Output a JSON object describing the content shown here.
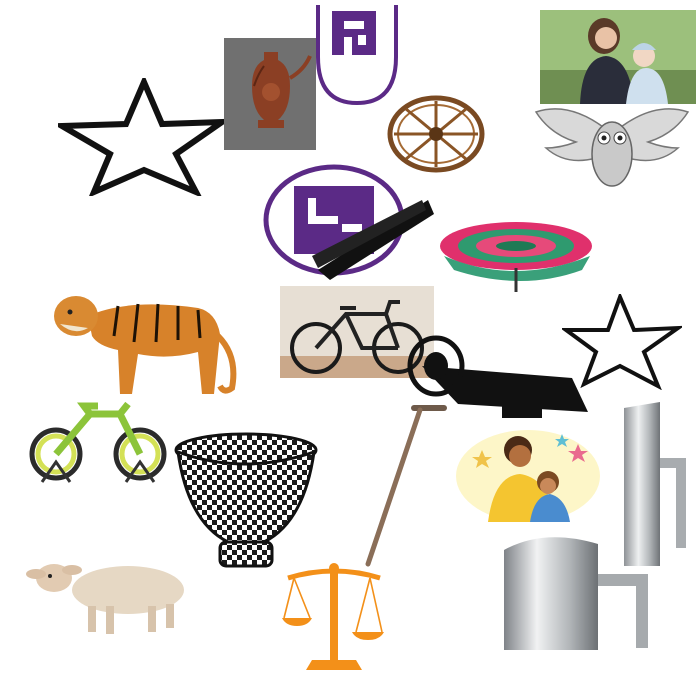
{
  "canvas": {
    "background": "#ffffff"
  },
  "items": [
    {
      "name": "star-outline-icon"
    },
    {
      "name": "ornate-vase-image"
    },
    {
      "name": "swastika-emblem-icon"
    },
    {
      "name": "wagon-wheel-image"
    },
    {
      "name": "mother-and-baby-photo"
    },
    {
      "name": "winged-owl-emblem-icon"
    },
    {
      "name": "swastika-emblem-icon"
    },
    {
      "name": "decorative-umbrella-image"
    },
    {
      "name": "tiger-image"
    },
    {
      "name": "bicycle-photo"
    },
    {
      "name": "megaphone-icon"
    },
    {
      "name": "star-outline-icon"
    },
    {
      "name": "bicycle-rack-image"
    },
    {
      "name": "woven-basket-icon"
    },
    {
      "name": "walking-cane-image"
    },
    {
      "name": "mother-and-child-illustration"
    },
    {
      "name": "steel-pitcher-image"
    },
    {
      "name": "steel-pitcher-image"
    },
    {
      "name": "sheep-image"
    },
    {
      "name": "balance-scale-icon"
    }
  ],
  "colors": {
    "outline": "#111111",
    "emblem_purple": "#5b2a86",
    "scale_orange": "#f39019",
    "umbrella_pink": "#e0306c",
    "tiger_orange": "#d7822a",
    "steel_grey": "#b9bcbf"
  }
}
